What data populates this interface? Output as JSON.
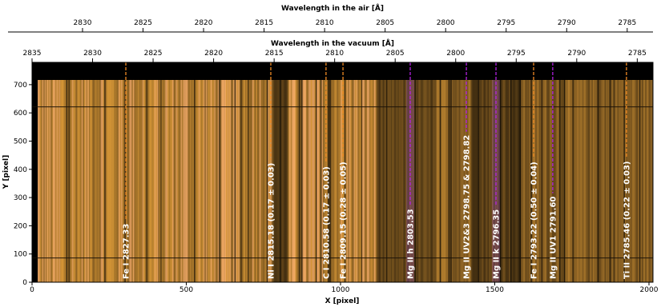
{
  "chart_data": {
    "type": "spectrogram",
    "xlabel": "X [pixel]",
    "ylabel": "Y [pixel]",
    "xlim": [
      0,
      2013
    ],
    "ylim": [
      0,
      779
    ],
    "xticks": [
      0,
      500,
      1000,
      1500,
      2000
    ],
    "yticks": [
      0,
      100,
      200,
      300,
      400,
      500,
      600,
      700
    ],
    "top_axes": [
      {
        "label": "Wavelength in the air [Å]",
        "xlim": [
          2834.17,
          2782.87
        ],
        "xticks": [
          2830,
          2825,
          2820,
          2815,
          2810,
          2805,
          2800,
          2795,
          2790,
          2785
        ]
      },
      {
        "label": "Wavelength in the vacuum [Å]",
        "xlim": [
          2835,
          2783.7
        ],
        "xticks": [
          2835,
          2830,
          2825,
          2820,
          2815,
          2810,
          2805,
          2800,
          2795,
          2790,
          2785
        ]
      }
    ],
    "annotations": [
      {
        "label": "Fe I 2827.33",
        "x": 304,
        "color": "#f08a24"
      },
      {
        "label": "Ni I 2815.18 (0.17 ± 0.03)",
        "x": 774,
        "color": "#f08a24"
      },
      {
        "label": "C I 2810.58 (0.17 ± 0.03)",
        "x": 953,
        "color": "#f08a24"
      },
      {
        "label": "Fe I 2809.15 (0.28 ± 0.05)",
        "x": 1008,
        "color": "#f08a24"
      },
      {
        "label": "Mg II h 2803.53",
        "x": 1226,
        "color": "#b020e0"
      },
      {
        "label": "Mg II UV2&3 2798.75 & 2798.82",
        "x": 1408,
        "color": "#b020e0"
      },
      {
        "label": "Mg II k 2796.35",
        "x": 1504,
        "color": "#b020e0"
      },
      {
        "label": "Fe I 2793.22 (0.50 ± 0.04)",
        "x": 1626,
        "color": "#f08a24"
      },
      {
        "label": "Mg II UV1 2791.60",
        "x": 1688,
        "color": "#b020e0"
      },
      {
        "label": "Ti II 2785.46 (0.22 ± 0.03)",
        "x": 1927,
        "color": "#f08a24"
      }
    ]
  }
}
